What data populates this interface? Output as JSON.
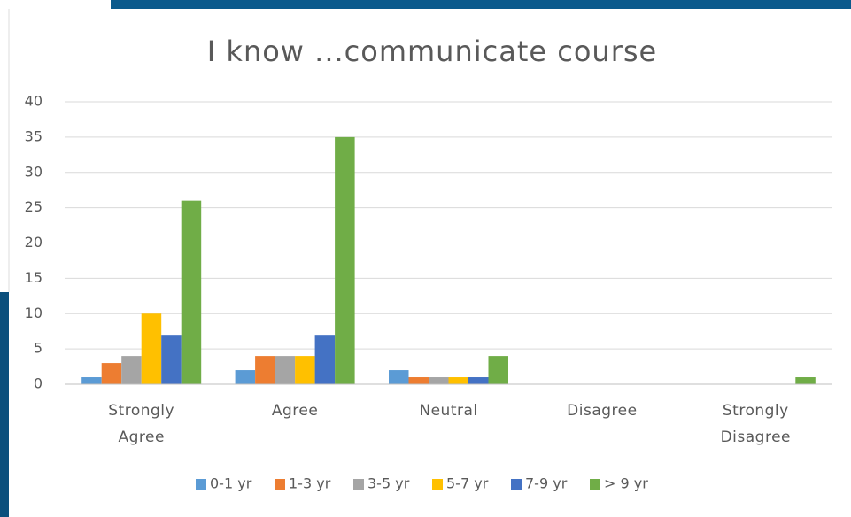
{
  "chart_data": {
    "type": "bar",
    "title": "I know ...communicate course",
    "categories": [
      "Strongly Agree",
      "Agree",
      "Neutral",
      "Disagree",
      "Strongly Disagree"
    ],
    "series": [
      {
        "name": "0-1 yr",
        "color": "#5b9bd5",
        "values": [
          1,
          2,
          2,
          0,
          0
        ]
      },
      {
        "name": "1-3 yr",
        "color": "#ed7d31",
        "values": [
          3,
          4,
          1,
          0,
          0
        ]
      },
      {
        "name": "3-5 yr",
        "color": "#a5a5a5",
        "values": [
          4,
          4,
          1,
          0,
          0
        ]
      },
      {
        "name": "5-7 yr",
        "color": "#ffc000",
        "values": [
          10,
          4,
          1,
          0,
          0
        ]
      },
      {
        "name": "7-9 yr",
        "color": "#4472c4",
        "values": [
          7,
          7,
          1,
          0,
          0
        ]
      },
      {
        "name": "> 9 yr",
        "color": "#70ad47",
        "values": [
          26,
          35,
          4,
          0,
          1
        ]
      }
    ],
    "ylim": [
      0,
      40
    ],
    "yticks": [
      0,
      5,
      10,
      15,
      20,
      25,
      30,
      35,
      40
    ],
    "grid": true,
    "legend": "bottom"
  }
}
